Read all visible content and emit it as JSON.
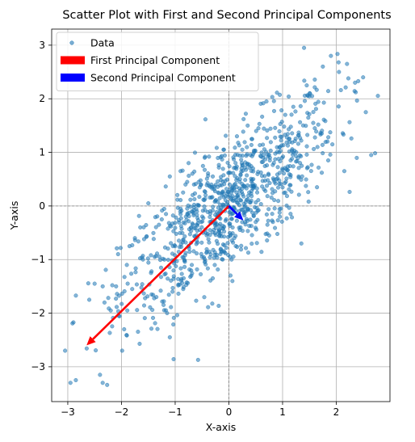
{
  "chart_data": {
    "type": "scatter",
    "title": "Scatter Plot with First and Second Principal Components",
    "xlabel": "X-axis",
    "ylabel": "Y-axis",
    "xlim": [
      -3.3,
      3.0
    ],
    "ylim": [
      -3.65,
      3.3
    ],
    "xticks": [
      -3,
      -2,
      -1,
      0,
      1,
      2
    ],
    "yticks": [
      -3,
      -2,
      -1,
      0,
      1,
      2,
      3
    ],
    "grid": true,
    "reference_lines": {
      "x": 0,
      "y": 0,
      "style": "dashed"
    },
    "legend": {
      "placement": "top-left",
      "entries": [
        {
          "label": "Data",
          "marker": "point",
          "color": "#1f77b4"
        },
        {
          "label": "First Principal Component",
          "marker": "patch",
          "color": "#ff0000"
        },
        {
          "label": "Second Principal Component",
          "marker": "patch",
          "color": "#0000ff"
        }
      ]
    },
    "series": [
      {
        "name": "Data",
        "kind": "points",
        "color": "#1f77b4",
        "opacity": 0.55,
        "distribution": {
          "count": 1000,
          "mean": [
            0,
            0
          ],
          "covariance": [
            [
              1,
              0.8
            ],
            [
              0.8,
              1
            ]
          ]
        },
        "points": [
          [
            -3.05,
            -2.7
          ],
          [
            -2.95,
            -3.3
          ],
          [
            -2.85,
            -3.25
          ],
          [
            -2.4,
            -3.15
          ],
          [
            -2.35,
            -3.3
          ],
          [
            -2.5,
            -1.45
          ],
          [
            -2.35,
            -1.5
          ],
          [
            -2.1,
            -1.5
          ],
          [
            -2.6,
            -1.75
          ],
          [
            -2.2,
            -1.95
          ],
          [
            -1.95,
            -2.3
          ],
          [
            -2.05,
            -2.05
          ],
          [
            -1.8,
            -1.55
          ],
          [
            -1.9,
            -1.1
          ],
          [
            -1.85,
            -0.75
          ],
          [
            -1.75,
            -0.6
          ],
          [
            -1.65,
            -0.4
          ],
          [
            -1.5,
            0.05
          ],
          [
            -1.25,
            -0.25
          ],
          [
            -1.1,
            0.55
          ],
          [
            -0.9,
            0.65
          ],
          [
            -0.75,
            0.8
          ],
          [
            -0.65,
            0.4
          ],
          [
            -0.45,
            0.9
          ],
          [
            -0.3,
            0.55
          ],
          [
            -0.1,
            1.05
          ],
          [
            0.15,
            1.3
          ],
          [
            0.25,
            1.05
          ],
          [
            0.35,
            1.5
          ],
          [
            0.55,
            1.45
          ],
          [
            0.7,
            1.95
          ],
          [
            0.95,
            1.1
          ],
          [
            1.05,
            1.7
          ],
          [
            1.2,
            1.85
          ],
          [
            1.4,
            2.95
          ],
          [
            1.45,
            2.25
          ],
          [
            1.55,
            2.05
          ],
          [
            1.6,
            1.45
          ],
          [
            1.75,
            2.6
          ],
          [
            1.9,
            2.8
          ],
          [
            2.05,
            2.5
          ],
          [
            2.2,
            2.65
          ],
          [
            2.35,
            2.3
          ],
          [
            2.5,
            2.4
          ],
          [
            2.55,
            1.75
          ],
          [
            2.65,
            0.95
          ],
          [
            2.15,
            0.65
          ],
          [
            1.85,
            0.85
          ],
          [
            1.65,
            1.1
          ],
          [
            1.35,
            -0.7
          ],
          [
            1.05,
            0.25
          ],
          [
            0.95,
            -0.2
          ],
          [
            0.75,
            -0.55
          ],
          [
            0.5,
            -0.3
          ],
          [
            0.35,
            -0.05
          ],
          [
            0.1,
            -0.6
          ],
          [
            0.05,
            -1.0
          ],
          [
            -0.15,
            -0.8
          ],
          [
            -0.3,
            -1.35
          ],
          [
            -0.5,
            -0.95
          ],
          [
            -0.7,
            -1.3
          ],
          [
            -0.85,
            -1.55
          ],
          [
            -1.05,
            -1.6
          ],
          [
            -1.1,
            -2.45
          ],
          [
            -1.15,
            -2.0
          ],
          [
            -1.35,
            -1.7
          ],
          [
            -1.45,
            -1.25
          ],
          [
            -1.6,
            -1.0
          ],
          [
            -0.45,
            -1.05
          ],
          [
            -0.6,
            -0.35
          ],
          [
            -0.35,
            -0.1
          ],
          [
            -0.2,
            0.25
          ],
          [
            0.05,
            0.15
          ],
          [
            0.2,
            0.45
          ],
          [
            0.45,
            0.7
          ],
          [
            0.65,
            0.95
          ],
          [
            0.85,
            0.45
          ],
          [
            1.15,
            0.85
          ],
          [
            1.3,
            0.55
          ],
          [
            0.3,
            0.0
          ],
          [
            -0.05,
            -0.25
          ],
          [
            -0.8,
            -0.2
          ],
          [
            -1.0,
            -0.75
          ],
          [
            -1.2,
            -1.0
          ],
          [
            -0.9,
            -0.05
          ]
        ]
      },
      {
        "name": "First Principal Component",
        "kind": "arrow",
        "color": "#ff0000",
        "from": [
          0,
          0
        ],
        "to": [
          -2.65,
          -2.6
        ]
      },
      {
        "name": "Second Principal Component",
        "kind": "arrow",
        "color": "#0000ff",
        "from": [
          0,
          0
        ],
        "to": [
          0.27,
          -0.27
        ]
      }
    ]
  }
}
